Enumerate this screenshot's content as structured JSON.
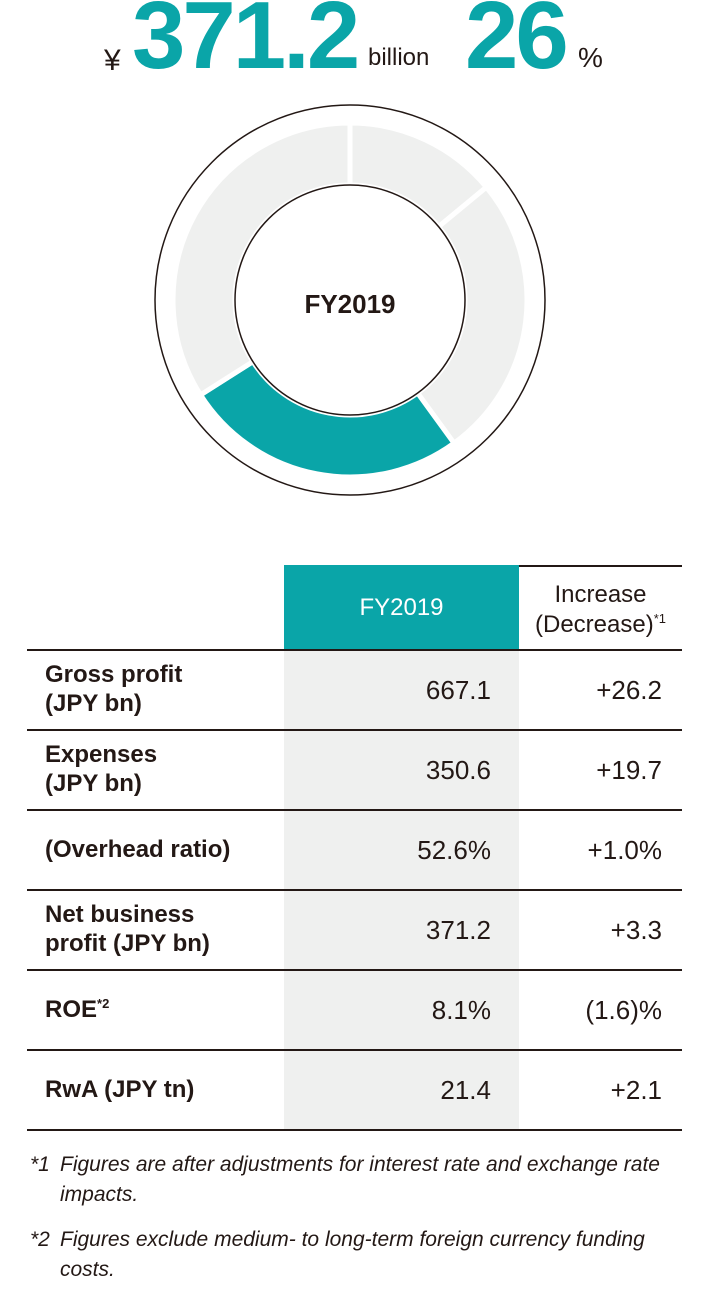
{
  "headline": {
    "currency": "¥",
    "amount": "371.2",
    "amount_unit": "billion",
    "share": "26",
    "share_unit": "%"
  },
  "colors": {
    "accent": "#0aa5a8",
    "segment_gray": "#eff0ef",
    "line": "#231815"
  },
  "chart_data": {
    "type": "pie",
    "center_label": "FY2019",
    "slices": [
      {
        "value": 14,
        "highlight": false
      },
      {
        "value": 26,
        "highlight": false
      },
      {
        "value": 26,
        "highlight": true
      },
      {
        "value": 34,
        "highlight": false
      }
    ]
  },
  "table": {
    "header": {
      "col1": "FY2019",
      "col2_line1": "Increase",
      "col2_line2": "(Decrease)",
      "col2_sup": "*1"
    },
    "rows": [
      {
        "label1": "Gross profit",
        "label2": "(JPY bn)",
        "sup": "",
        "fy": "667.1",
        "change": "+26.2"
      },
      {
        "label1": "Expenses",
        "label2": "(JPY bn)",
        "sup": "",
        "fy": "350.6",
        "change": "+19.7"
      },
      {
        "label1": "(Overhead ratio)",
        "label2": "",
        "sup": "",
        "fy": "52.6%",
        "change": "+1.0%"
      },
      {
        "label1": "Net business",
        "label2": "profit (JPY bn)",
        "sup": "",
        "fy": "371.2",
        "change": "+3.3"
      },
      {
        "label1": "ROE",
        "label2": "",
        "sup": "*2",
        "fy": "8.1%",
        "change": "(1.6)%"
      },
      {
        "label1": "RwA (JPY tn)",
        "label2": "",
        "sup": "",
        "fy": "21.4",
        "change": "+2.1"
      }
    ]
  },
  "notes": [
    {
      "mark": "*1",
      "text": "Figures are after adjustments for interest rate and exchange rate impacts."
    },
    {
      "mark": "*2",
      "text": "Figures exclude medium- to long-term foreign currency funding costs."
    }
  ]
}
